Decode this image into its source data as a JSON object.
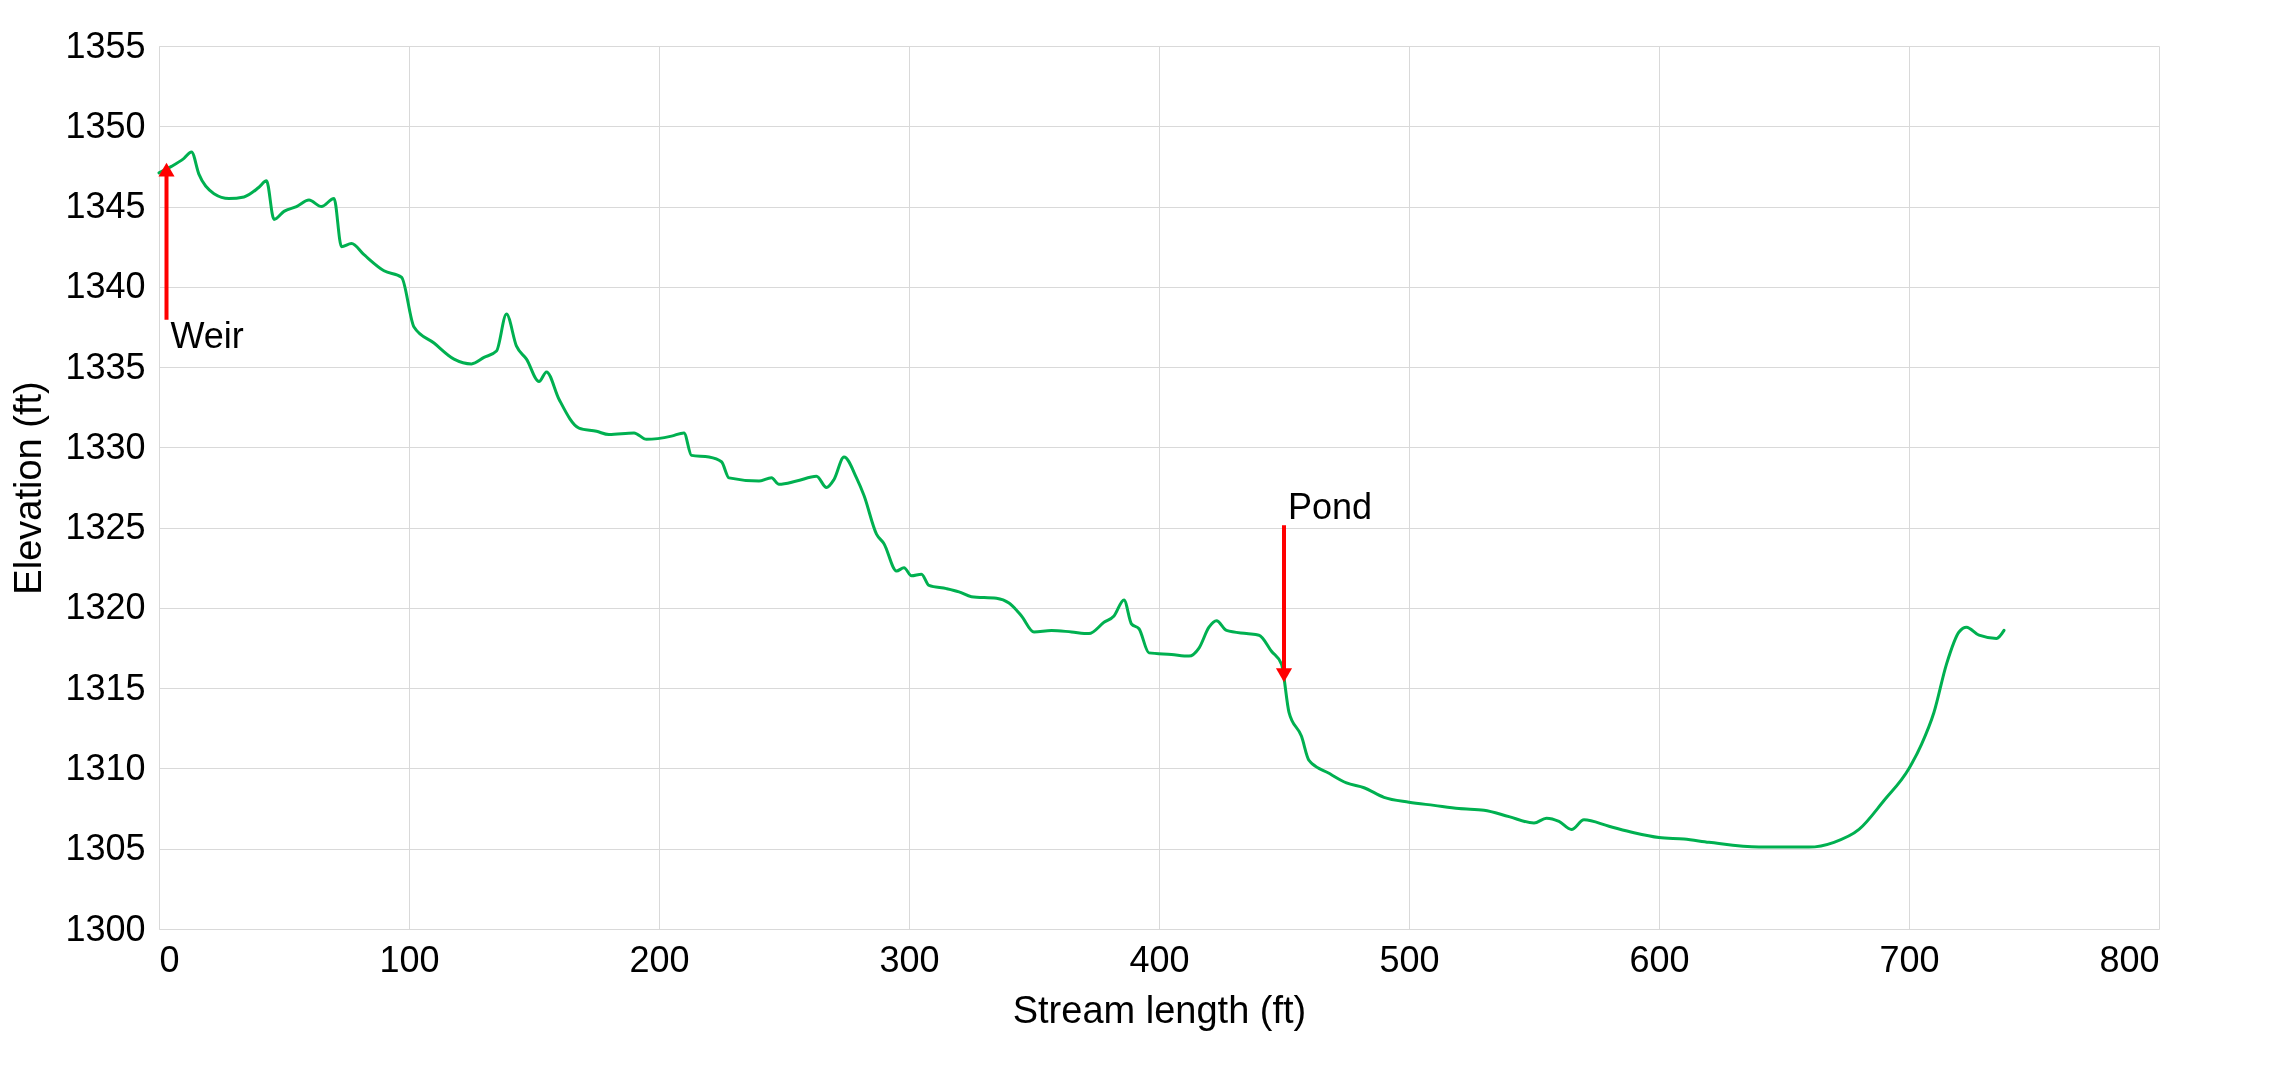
{
  "chart_data": {
    "type": "line",
    "xlabel": "Stream length (ft)",
    "ylabel": "Elevation (ft)",
    "xlim": [
      0,
      800
    ],
    "xticks": [
      0,
      100,
      200,
      300,
      400,
      500,
      600,
      700,
      800
    ],
    "ylim": [
      1300,
      1355
    ],
    "yticks": [
      1300,
      1305,
      1310,
      1315,
      1320,
      1325,
      1330,
      1335,
      1340,
      1345,
      1350,
      1355
    ],
    "grid": true,
    "series": [
      {
        "color": "#00b050",
        "x": [
          0,
          5,
          10,
          13,
          16,
          22,
          28,
          34,
          40,
          43,
          46,
          50,
          55,
          60,
          65,
          70,
          73,
          77,
          82,
          90,
          97,
          102,
          110,
          118,
          125,
          130,
          135,
          139,
          143,
          147,
          152,
          155,
          160,
          168,
          175,
          180,
          190,
          195,
          205,
          210,
          213,
          220,
          225,
          228,
          240,
          245,
          248,
          255,
          263,
          267,
          270,
          274,
          279,
          282,
          287,
          290,
          295,
          298,
          301,
          305,
          308,
          315,
          320,
          325,
          335,
          340,
          345,
          350,
          357,
          365,
          372,
          378,
          382,
          386,
          389,
          392,
          396,
          405,
          412,
          416,
          420,
          423,
          427,
          435,
          440,
          445,
          449,
          452,
          457,
          460,
          468,
          475,
          482,
          490,
          500,
          510,
          520,
          530,
          540,
          550,
          555,
          560,
          565,
          570,
          580,
          590,
          600,
          610,
          620,
          640,
          660,
          670,
          680,
          690,
          700,
          705,
          710,
          715,
          720,
          723,
          728,
          735,
          738
        ],
        "values": [
          1347.1,
          1347.5,
          1348.0,
          1348.4,
          1347.0,
          1345.8,
          1345.5,
          1345.6,
          1346.2,
          1346.6,
          1344.2,
          1344.7,
          1345.0,
          1345.4,
          1345.0,
          1345.5,
          1342.5,
          1342.7,
          1342.0,
          1341.0,
          1340.6,
          1337.5,
          1336.5,
          1335.5,
          1335.2,
          1335.6,
          1336.0,
          1338.3,
          1336.3,
          1335.5,
          1334.1,
          1334.7,
          1333.0,
          1331.2,
          1331.0,
          1330.8,
          1330.9,
          1330.5,
          1330.7,
          1330.9,
          1329.5,
          1329.4,
          1329.1,
          1328.1,
          1327.9,
          1328.1,
          1327.7,
          1327.9,
          1328.2,
          1327.5,
          1328.0,
          1329.4,
          1328.1,
          1327.0,
          1324.6,
          1324.0,
          1322.3,
          1322.5,
          1322.0,
          1322.1,
          1321.4,
          1321.2,
          1321.0,
          1320.7,
          1320.6,
          1320.3,
          1319.5,
          1318.5,
          1318.6,
          1318.5,
          1318.4,
          1319.1,
          1319.5,
          1320.5,
          1319.0,
          1318.7,
          1317.2,
          1317.1,
          1317.0,
          1317.5,
          1318.8,
          1319.2,
          1318.6,
          1318.4,
          1318.3,
          1317.3,
          1316.5,
          1313.5,
          1312.0,
          1310.5,
          1309.7,
          1309.1,
          1308.8,
          1308.2,
          1307.9,
          1307.7,
          1307.5,
          1307.4,
          1307.0,
          1306.6,
          1306.9,
          1306.7,
          1306.2,
          1306.8,
          1306.4,
          1306.0,
          1305.7,
          1305.6,
          1305.4,
          1305.1,
          1305.1,
          1305.4,
          1306.2,
          1308.0,
          1310.0,
          1311.5,
          1313.5,
          1316.5,
          1318.5,
          1318.8,
          1318.3,
          1318.1,
          1318.6
        ]
      }
    ],
    "annotations": [
      {
        "text": "Weir",
        "x": 3,
        "y": 1347.3
      },
      {
        "text": "Pond",
        "x": 450,
        "y": 1315.8
      }
    ]
  }
}
